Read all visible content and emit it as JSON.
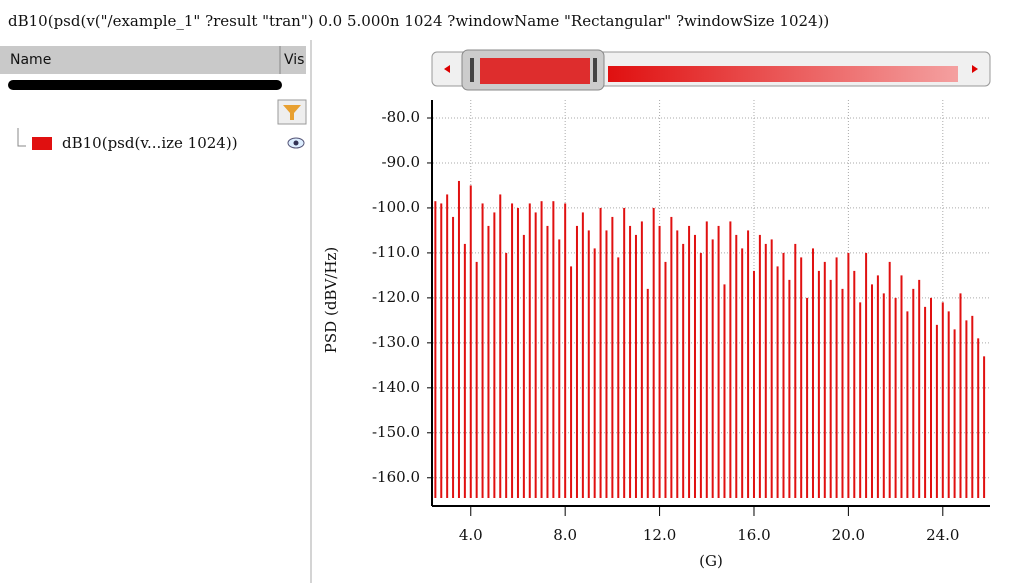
{
  "window_title": "dB10(psd(v(\"/example_1\" ?result \"tran\")  0.0 5.000n 1024 ?windowName \"Rectangular\" ?windowSize 1024))",
  "panel": {
    "name_header": "Name",
    "vis_header": "Vis"
  },
  "chart_data": {
    "type": "bar",
    "y_label": "PSD (dBV/Hz)",
    "x_label": "(G)",
    "x": [
      2.5,
      2.75,
      3,
      3.25,
      3.5,
      3.75,
      4,
      4.25,
      4.5,
      4.75,
      5,
      5.25,
      5.5,
      5.75,
      6,
      6.25,
      6.5,
      6.75,
      7,
      7.25,
      7.5,
      7.75,
      8,
      8.25,
      8.5,
      8.75,
      9,
      9.25,
      9.5,
      9.75,
      10,
      10.25,
      10.5,
      10.75,
      11,
      11.25,
      11.5,
      11.75,
      12,
      12.25,
      12.5,
      12.75,
      13,
      13.25,
      13.5,
      13.75,
      14,
      14.25,
      14.5,
      14.75,
      15,
      15.25,
      15.5,
      15.75,
      16,
      16.25,
      16.5,
      16.75,
      17,
      17.25,
      17.5,
      17.75,
      18,
      18.25,
      18.5,
      18.75,
      19,
      19.25,
      19.5,
      19.75,
      20,
      20.25,
      20.5,
      20.75,
      21,
      21.25,
      21.5,
      21.75,
      22,
      22.25,
      22.5,
      22.75,
      23,
      23.25,
      23.5,
      23.75,
      24,
      24.25,
      24.5,
      24.75,
      25,
      25.25,
      25.5,
      25.75
    ],
    "series": [
      {
        "name": "dB10(psd(v...ize 1024))",
        "color": "#e01010",
        "values": [
          -98.5,
          -99,
          -97,
          -102,
          -94,
          -108,
          -95,
          -112,
          -99,
          -104,
          -101,
          -97,
          -110,
          -99,
          -100,
          -106,
          -99,
          -101,
          -98.5,
          -104,
          -98.5,
          -107,
          -99,
          -113,
          -104,
          -101,
          -105,
          -109,
          -100,
          -105,
          -102,
          -111,
          -100,
          -104,
          -106,
          -103,
          -118,
          -100,
          -104,
          -112,
          -102,
          -105,
          -108,
          -104,
          -106,
          -110,
          -103,
          -107,
          -104,
          -117,
          -103,
          -106,
          -109,
          -105,
          -114,
          -106,
          -108,
          -107,
          -113,
          -110,
          -116,
          -108,
          -111,
          -120,
          -109,
          -114,
          -112,
          -116,
          -111,
          -118,
          -110,
          -114,
          -121,
          -110,
          -117,
          -115,
          -119,
          -112,
          -120,
          -115,
          -123,
          -118,
          -116,
          -122,
          -120,
          -126,
          -121,
          -123,
          -127,
          -119,
          -125,
          -124,
          -129,
          -133
        ]
      }
    ],
    "xlim": [
      2.4,
      26
    ],
    "ylim": [
      -164.5,
      -76
    ],
    "xticks": [
      {
        "value": 4,
        "label": "4.0"
      },
      {
        "value": 8,
        "label": "8.0"
      },
      {
        "value": 12,
        "label": "12.0"
      },
      {
        "value": 16,
        "label": "16.0"
      },
      {
        "value": 20,
        "label": "20.0"
      },
      {
        "value": 24,
        "label": "24.0"
      }
    ],
    "yticks": [
      {
        "value": -80,
        "label": "-80.0"
      },
      {
        "value": -90,
        "label": "-90.0"
      },
      {
        "value": -100,
        "label": "-100.0"
      },
      {
        "value": -110,
        "label": "-110.0"
      },
      {
        "value": -120,
        "label": "-120.0"
      },
      {
        "value": -130,
        "label": "-130.0"
      },
      {
        "value": -140,
        "label": "-140.0"
      },
      {
        "value": -150,
        "label": "-150.0"
      },
      {
        "value": -160,
        "label": "-160.0"
      }
    ],
    "grid": true
  }
}
